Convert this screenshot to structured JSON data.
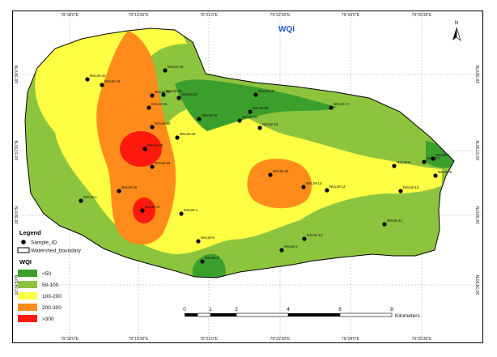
{
  "map": {
    "title": "WQI",
    "north_label": "N",
    "top_lon_labels": [
      "79°18'0\"E",
      "79°19'30\"E",
      "79°21'0\"E",
      "79°22'30\"E",
      "79°24'0\"E",
      "79°25'30\"E"
    ],
    "bottom_lon_labels": [
      "79°18'0\"E",
      "79°19'30\"E",
      "79°21'0\"E",
      "79°22'30\"E",
      "79°24'0\"E",
      "79°25'30\"E"
    ],
    "left_lat_labels": [
      "16°39'0\"N",
      "16°37'30\"N",
      "16°36'0\"N",
      "16°34'30\"N"
    ],
    "right_lat_labels": [
      "16°39'0\"N",
      "16°37'30\"N",
      "16°36'0\"N",
      "16°34'30\"N"
    ],
    "colors": {
      "lt50": "#3a9f2b",
      "c50_100": "#8cc43e",
      "c100_200": "#ffff44",
      "c200_300": "#ff8c1a",
      "gt300": "#ff1a0d"
    }
  },
  "samples": [
    {
      "label": "NKLW-34"
    },
    {
      "label": "NKLW-33"
    },
    {
      "label": "NKLW-18"
    },
    {
      "label": "NKLW-25"
    },
    {
      "label": "NKLW-32"
    },
    {
      "label": "NKLW-24"
    },
    {
      "label": "NKLW-31"
    },
    {
      "label": "NKLW-19"
    },
    {
      "label": "NKLW-20"
    },
    {
      "label": "NKLW-22"
    },
    {
      "label": "NKLW-21"
    },
    {
      "label": "NKLW-17"
    },
    {
      "label": "NKLW-30"
    },
    {
      "label": "NKLW-16"
    },
    {
      "label": "NKLW-23"
    },
    {
      "label": "NKLW-29"
    },
    {
      "label": "NKLW-28"
    },
    {
      "label": "NKLW-6"
    },
    {
      "label": "NKLW-7"
    },
    {
      "label": "NKLW-8"
    },
    {
      "label": "NKLW-9"
    },
    {
      "label": "NKLW-15"
    },
    {
      "label": "NKLW-14"
    },
    {
      "label": "NKLW-13"
    },
    {
      "label": "NKLW-10"
    },
    {
      "label": "NKLW-26"
    },
    {
      "label": "NKLW-1"
    },
    {
      "label": "NKLW-27"
    },
    {
      "label": "NKLW-4"
    },
    {
      "label": "NKLW-11"
    },
    {
      "label": "NKLW-12"
    },
    {
      "label": "NKLW-5"
    },
    {
      "label": "NKLW-2"
    },
    {
      "label": "NKLW-3"
    }
  ],
  "legend": {
    "title": "Legend",
    "sample_id": "Sample_ID",
    "boundary": "Watershed_boundary",
    "wqi_title": "WQI",
    "classes": [
      "<50",
      "50-100",
      "100-200",
      "200-300",
      ">300"
    ]
  },
  "scalebar": {
    "ticks": [
      "0",
      "1",
      "2",
      "4",
      "6",
      "8"
    ],
    "unit": "Kilometers"
  }
}
